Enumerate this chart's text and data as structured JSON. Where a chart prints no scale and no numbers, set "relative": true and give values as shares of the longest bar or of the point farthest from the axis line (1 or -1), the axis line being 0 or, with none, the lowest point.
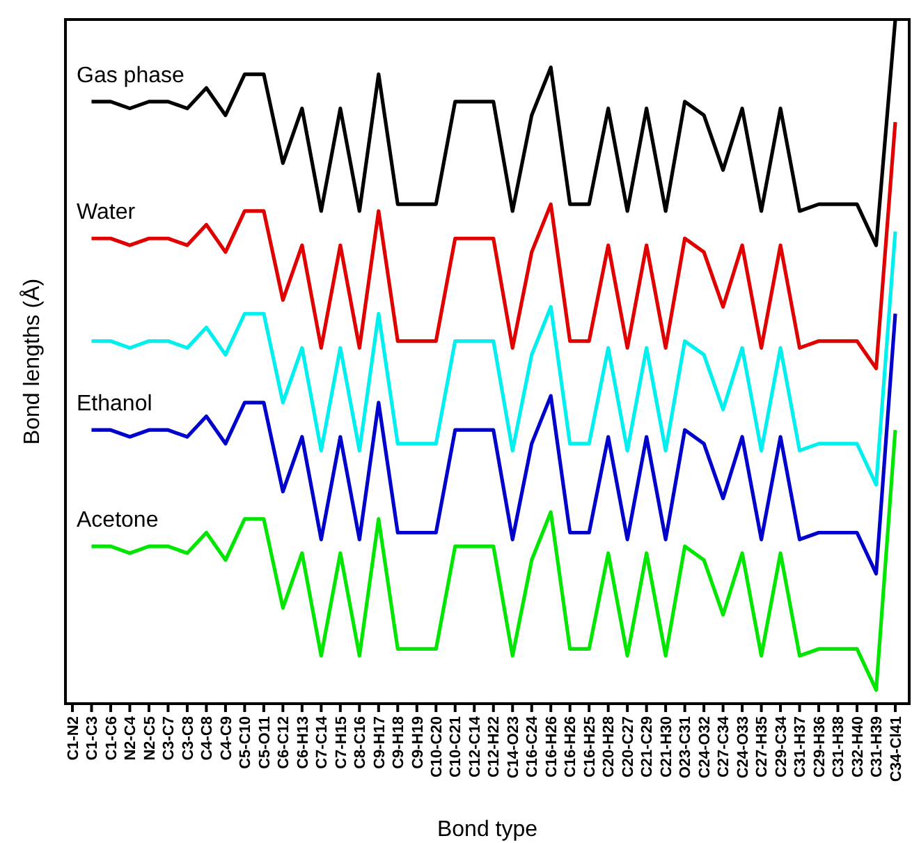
{
  "chart_data": {
    "type": "line",
    "xlabel": "Bond type",
    "ylabel": "Bond lengths (Å)",
    "relative": true,
    "marker": "none",
    "line_style": "solid",
    "categories": [
      "C1-N2",
      "C1-C3",
      "C1-C6",
      "N2-C4",
      "N2-C5",
      "C3-C7",
      "C3-C8",
      "C4-C8",
      "C4-C9",
      "C5-C10",
      "C5-O11",
      "C6-C12",
      "C6-H13",
      "C7-C14",
      "C7-H15",
      "C8-C16",
      "C9-H17",
      "C9-H18",
      "C9-H19",
      "C10-C20",
      "C10-C21",
      "C12-C14",
      "C12-H22",
      "C14-O23",
      "C16-C24",
      "C16-H26",
      "C16-H26",
      "C16-H25",
      "C20-H28",
      "C20-C27",
      "C21-C29",
      "C21-H30",
      "O23-C31",
      "C24-O32",
      "C27-C34",
      "C24-O33",
      "C27-H35",
      "C29-C34",
      "C31-H37",
      "C29-H36",
      "C31-H38",
      "C32-H40",
      "C31-H39",
      "C34-Cl41"
    ],
    "series": [
      {
        "name": "Gas phase",
        "color": "#000000",
        "values": [
          null,
          0.88,
          0.88,
          0.87,
          0.88,
          0.88,
          0.87,
          0.9,
          0.86,
          0.92,
          0.92,
          0.79,
          0.87,
          0.72,
          0.87,
          0.72,
          0.92,
          0.73,
          0.73,
          0.73,
          0.88,
          0.88,
          0.88,
          0.72,
          0.86,
          0.93,
          0.73,
          0.73,
          0.87,
          0.72,
          0.87,
          0.72,
          0.88,
          0.86,
          0.78,
          0.87,
          0.72,
          0.87,
          0.72,
          0.73,
          0.73,
          0.73,
          0.67,
          1
        ]
      },
      {
        "name": "Water",
        "color": "#e00000",
        "values": [
          null,
          0.68,
          0.68,
          0.67,
          0.68,
          0.68,
          0.67,
          0.7,
          0.66,
          0.72,
          0.72,
          0.59,
          0.67,
          0.52,
          0.67,
          0.52,
          0.72,
          0.53,
          0.53,
          0.53,
          0.68,
          0.68,
          0.68,
          0.52,
          0.66,
          0.73,
          0.53,
          0.53,
          0.67,
          0.52,
          0.67,
          0.52,
          0.68,
          0.66,
          0.58,
          0.67,
          0.52,
          0.67,
          0.52,
          0.53,
          0.53,
          0.53,
          0.49,
          0.85
        ]
      },
      {
        "color": "#00f0f0",
        "values": [
          null,
          0.53,
          0.53,
          0.52,
          0.53,
          0.53,
          0.52,
          0.55,
          0.51,
          0.57,
          0.57,
          0.44,
          0.52,
          0.37,
          0.52,
          0.37,
          0.57,
          0.38,
          0.38,
          0.38,
          0.53,
          0.53,
          0.53,
          0.37,
          0.51,
          0.58,
          0.38,
          0.38,
          0.52,
          0.37,
          0.52,
          0.37,
          0.53,
          0.51,
          0.43,
          0.52,
          0.37,
          0.52,
          0.37,
          0.38,
          0.38,
          0.38,
          0.32,
          0.69
        ]
      },
      {
        "name": "Ethanol",
        "color": "#0000cc",
        "values": [
          null,
          0.4,
          0.4,
          0.39,
          0.4,
          0.4,
          0.39,
          0.42,
          0.38,
          0.44,
          0.44,
          0.31,
          0.39,
          0.24,
          0.39,
          0.24,
          0.44,
          0.25,
          0.25,
          0.25,
          0.4,
          0.4,
          0.4,
          0.24,
          0.38,
          0.45,
          0.25,
          0.25,
          0.39,
          0.24,
          0.39,
          0.24,
          0.4,
          0.38,
          0.3,
          0.39,
          0.24,
          0.39,
          0.24,
          0.25,
          0.25,
          0.25,
          0.19,
          0.57
        ]
      },
      {
        "name": "Acetone",
        "color": "#00e600",
        "values": [
          null,
          0.23,
          0.23,
          0.22,
          0.23,
          0.23,
          0.22,
          0.25,
          0.21,
          0.27,
          0.27,
          0.14,
          0.22,
          0.07,
          0.22,
          0.07,
          0.27,
          0.08,
          0.08,
          0.08,
          0.23,
          0.23,
          0.23,
          0.07,
          0.21,
          0.28,
          0.08,
          0.08,
          0.22,
          0.07,
          0.22,
          0.07,
          0.23,
          0.21,
          0.13,
          0.22,
          0.07,
          0.22,
          0.07,
          0.08,
          0.08,
          0.08,
          0.02,
          0.4
        ]
      }
    ]
  }
}
